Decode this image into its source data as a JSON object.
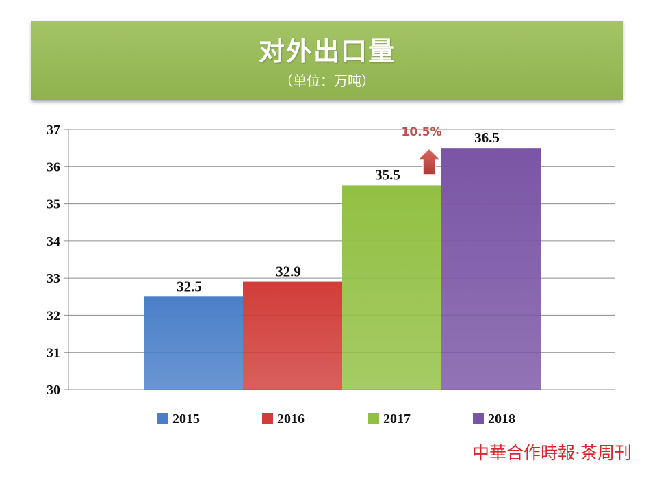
{
  "header": {
    "title": "对外出口量",
    "subtitle": "（单位：万吨）"
  },
  "annotation": {
    "growth_label": "10.5%",
    "arrow_color": "#c0504d"
  },
  "watermark": "中華合作時報·茶周刊",
  "chart_data": {
    "type": "bar",
    "title": "对外出口量",
    "subtitle": "（单位：万吨）",
    "categories": [
      "2015",
      "2016",
      "2017",
      "2018"
    ],
    "values": [
      32.5,
      32.9,
      35.5,
      36.5
    ],
    "data_labels": [
      "32.5",
      "32.9",
      "35.5",
      "36.5"
    ],
    "colors": [
      "#4a7fc8",
      "#d13d39",
      "#92c043",
      "#7a55a5"
    ],
    "ylim": [
      30,
      37
    ],
    "yticks": [
      "30",
      "31",
      "32",
      "33",
      "34",
      "35",
      "36",
      "37"
    ],
    "grid": true,
    "legend": "bottom"
  }
}
